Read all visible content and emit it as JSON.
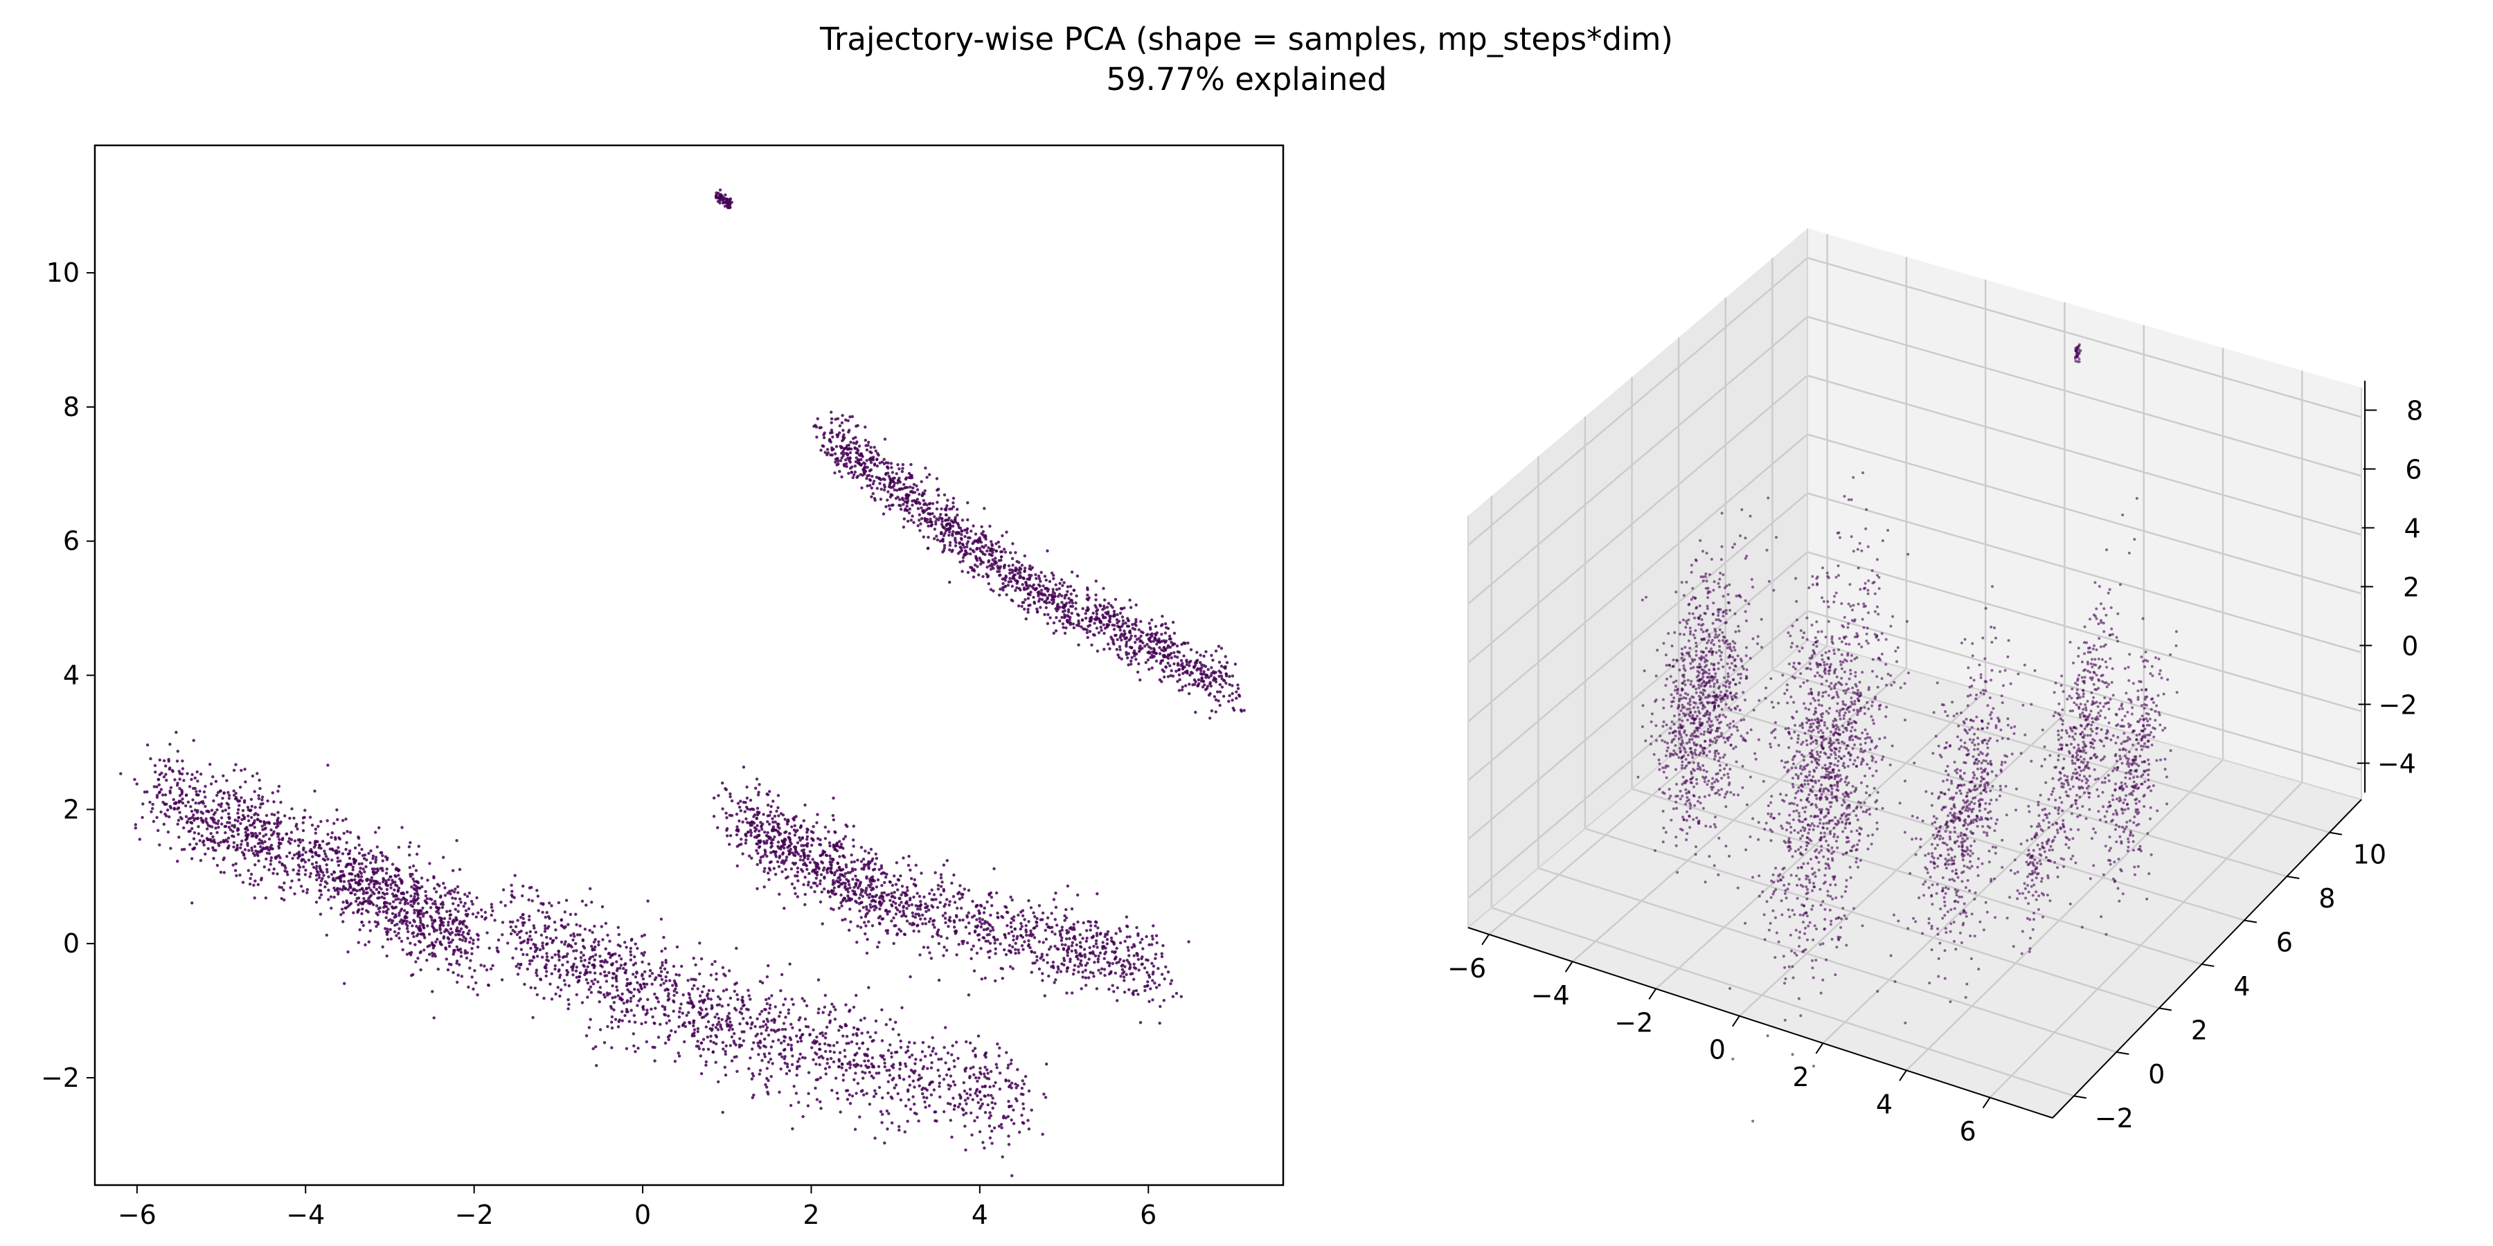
{
  "title": {
    "line1": "Trajectory-wise PCA (shape = samples, mp_steps*dim)",
    "line2": "59.77% explained"
  },
  "colors": {
    "point": "#440154",
    "axes": "#000000",
    "pane_back": "#f2f2f2",
    "pane_side": "#e8e8e8",
    "pane_floor": "#ebebeb",
    "grid": "#cccccc"
  },
  "chart_data": [
    {
      "type": "scatter",
      "subplot": "left",
      "projection": "2d",
      "xlabel": "",
      "ylabel": "",
      "xlim": [
        -6.5,
        7.6
      ],
      "ylim": [
        -3.6,
        11.9
      ],
      "xticks": [
        "−6",
        "−4",
        "−2",
        "0",
        "2",
        "4",
        "6"
      ],
      "yticks": [
        "−2",
        "0",
        "2",
        "4",
        "6",
        "8",
        "10"
      ],
      "xtick_values": [
        -6,
        -4,
        -2,
        0,
        2,
        4,
        6
      ],
      "ytick_values": [
        -2,
        0,
        2,
        4,
        6,
        8,
        10
      ],
      "grid": false,
      "clusters": [
        {
          "name": "",
          "x_range": [
            -5.9,
            -2.0
          ],
          "center_line": [
            [
              -5.8,
              2.3
            ],
            [
              -3.6,
              1.1
            ],
            [
              -2.0,
              0.0
            ]
          ],
          "spread": 0.35
        },
        {
          "name": "",
          "x_range": [
            -1.6,
            4.5
          ],
          "center_line": [
            [
              -1.6,
              0.2
            ],
            [
              1.0,
              -1.2
            ],
            [
              4.5,
              -2.4
            ]
          ],
          "spread": 0.4
        },
        {
          "name": "",
          "x_range": [
            1.1,
            6.7
          ],
          "center_line": [
            [
              1.1,
              1.9
            ],
            [
              3.0,
              0.6
            ],
            [
              6.2,
              -0.4
            ]
          ],
          "spread": 0.3
        },
        {
          "name": "",
          "x_range": [
            2.2,
            7.0
          ],
          "center_line": [
            [
              2.2,
              7.6
            ],
            [
              4.5,
              5.4
            ],
            [
              7.0,
              3.8
            ]
          ],
          "spread": 0.2
        },
        {
          "name": "",
          "x_range": [
            0.88,
            1.05
          ],
          "center_line": [
            [
              0.88,
              11.15
            ],
            [
              1.05,
              11.0
            ]
          ],
          "spread": 0.04
        }
      ]
    },
    {
      "type": "scatter",
      "subplot": "right",
      "projection": "3d",
      "xlabel": "",
      "ylabel": "",
      "zlabel": "",
      "xlim": [
        -6.5,
        7.5
      ],
      "ylim": [
        -3,
        11.5
      ],
      "zlim": [
        -5,
        9
      ],
      "xticks": [
        "−6",
        "−4",
        "−2",
        "0",
        "2",
        "4",
        "6"
      ],
      "yticks": [
        "−2",
        "0",
        "2",
        "4",
        "6",
        "8",
        "10"
      ],
      "zticks": [
        "−4",
        "−2",
        "0",
        "2",
        "4",
        "6",
        "8"
      ],
      "xtick_values": [
        -6,
        -4,
        -2,
        0,
        2,
        4,
        6
      ],
      "ytick_values": [
        -2,
        0,
        2,
        4,
        6,
        8,
        10
      ],
      "ztick_values": [
        -4,
        -2,
        0,
        2,
        4,
        6,
        8
      ],
      "grid": true
    }
  ]
}
